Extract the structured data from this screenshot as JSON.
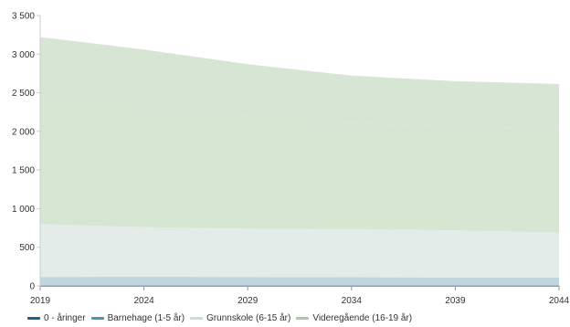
{
  "chart_data": {
    "type": "area",
    "stacked": true,
    "title": "",
    "xlabel": "",
    "ylabel": "",
    "x": [
      2019,
      2024,
      2029,
      2034,
      2039,
      2044
    ],
    "x_tick_labels": [
      "2019",
      "2024",
      "2029",
      "2034",
      "2039",
      "2044"
    ],
    "ylim": [
      0,
      3500
    ],
    "y_ticks": [
      0,
      500,
      1000,
      1500,
      2000,
      2500,
      3000,
      3500
    ],
    "y_tick_labels": [
      "0",
      "500",
      "1 000",
      "1 500",
      "2 000",
      "2 500",
      "3 000",
      "3 500"
    ],
    "grid": false,
    "legend_position": "bottom-left",
    "series": [
      {
        "name": "0 - åringer",
        "color": "#1f5f8b",
        "fill": "#8fb3c9",
        "values": [
          10,
          10,
          10,
          10,
          10,
          10
        ]
      },
      {
        "name": "Barnehage (1-5 år)",
        "color": "#4e93b5",
        "fill": "#bfd6e0",
        "values": [
          105,
          110,
          105,
          102,
          100,
          100
        ]
      },
      {
        "name": "Grunnskole (6-15 år)",
        "color": "#c9dcdf",
        "fill": "#e4ecea",
        "values": [
          685,
          640,
          625,
          620,
          610,
          580
        ]
      },
      {
        "name": "Videregående (16-19 år)",
        "color": "#a9cca6",
        "fill": "#d6e6d3",
        "values": [
          1650,
          1560,
          1450,
          1370,
          1350,
          1350
        ]
      },
      {
        "name": "",
        "color": "#a9cca6",
        "fill": "#d7e5d4",
        "values": [
          770,
          740,
          680,
          620,
          580,
          575
        ]
      }
    ]
  }
}
